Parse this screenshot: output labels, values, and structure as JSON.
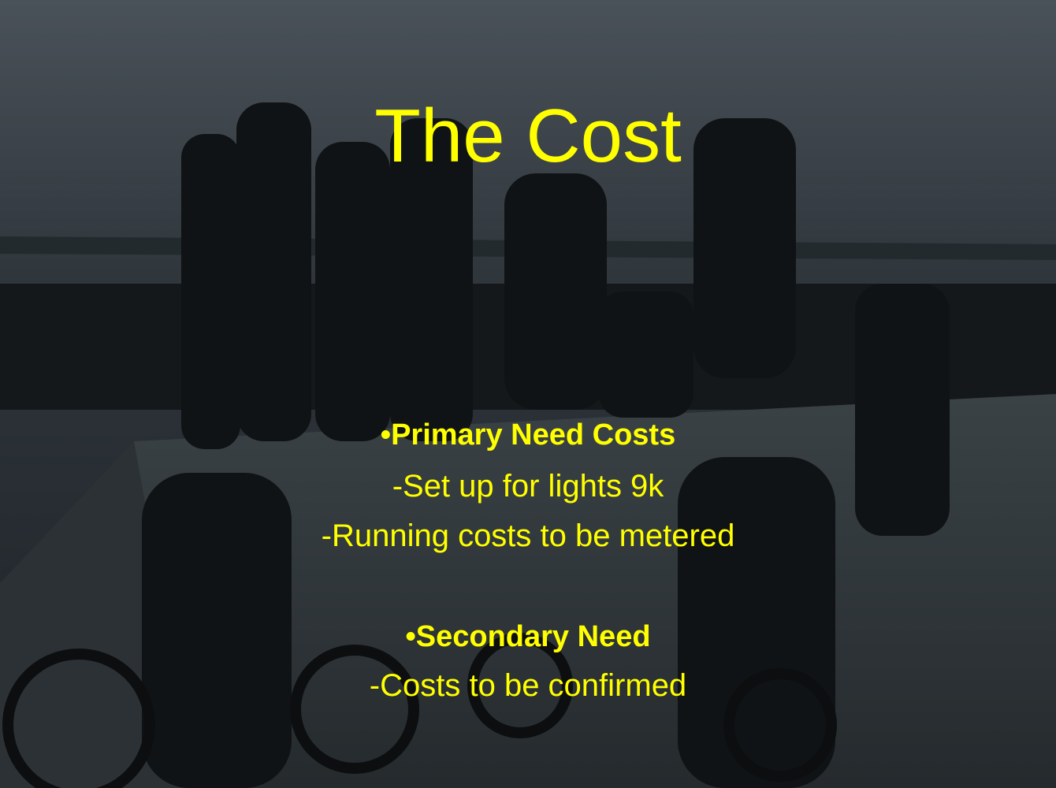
{
  "title": "The Cost",
  "sections": [
    {
      "heading": "•Primary Need Costs",
      "lines": [
        "-Set up for lights 9k",
        "-Running costs to be metered"
      ]
    },
    {
      "heading": "•Secondary Need",
      "lines": [
        "-Costs to be confirmed"
      ]
    }
  ]
}
